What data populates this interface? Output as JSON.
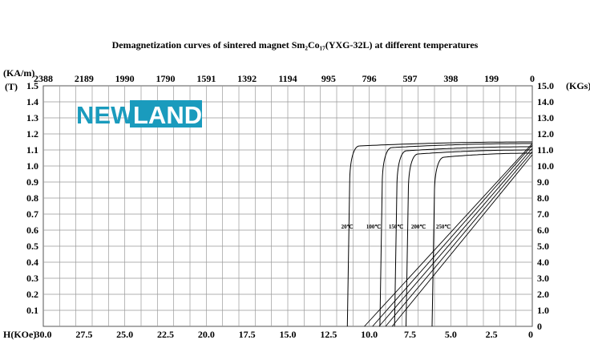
{
  "title": "Demagnetization curves of sintered magnet Sm₂Co₁₇(YXG-32L) at different temperatures",
  "logo": {
    "part1": "NEW",
    "part2": "LAND",
    "color": "#1a9bbd"
  },
  "chart_data": {
    "type": "line",
    "title": "Demagnetization curves of sintered magnet Sm₂Co₁₇(YXG-32L) at different temperatures",
    "x_axis": {
      "label": "H(KOe)",
      "range": [
        30,
        0
      ],
      "reversed": true,
      "ticks": [
        "30.0",
        "27.5",
        "25.0",
        "22.5",
        "20.0",
        "17.5",
        "15.0",
        "12.5",
        "10.0",
        "7.5",
        "5.0",
        "2.5",
        "0"
      ]
    },
    "x_top_axis": {
      "label": "",
      "unit": "KA/m",
      "ticks": [
        "2388",
        "2189",
        "1990",
        "1790",
        "1591",
        "1392",
        "1194",
        "995",
        "796",
        "597",
        "398",
        "199",
        "0"
      ]
    },
    "y_axis": {
      "label": "(T)",
      "range": [
        0,
        1.5
      ],
      "ticks": [
        "1.5",
        "1.4",
        "1.3",
        "1.2",
        "1.1",
        "1.0",
        "0.9",
        "0.8",
        "0.7",
        "0.6",
        "0.5",
        "0.4",
        "0.3",
        "0.2",
        "0.1"
      ]
    },
    "y_right_axis": {
      "label": "(KGs)",
      "range": [
        0,
        15
      ],
      "ticks": [
        "15.0",
        "14.0",
        "13.0",
        "12.0",
        "11.0",
        "10.0",
        "9.0",
        "8.0",
        "7.0",
        "6.0",
        "5.0",
        "4.0",
        "3.0",
        "2.0",
        "1.0",
        "0"
      ]
    },
    "grid": true,
    "series": [
      {
        "name": "20℃",
        "Br": 1.14,
        "Hcb": 10.3,
        "Hcj": 11.2
      },
      {
        "name": "100℃",
        "Br": 1.13,
        "Hcb": 9.8,
        "Hcj": 9.2
      },
      {
        "name": "150℃",
        "Br": 1.11,
        "Hcb": 9.4,
        "Hcj": 8.3
      },
      {
        "name": "200℃",
        "Br": 1.09,
        "Hcb": 9.0,
        "Hcj": 7.6
      },
      {
        "name": "250℃",
        "Br": 1.07,
        "Hcb": 8.6,
        "Hcj": 6.0
      }
    ]
  }
}
